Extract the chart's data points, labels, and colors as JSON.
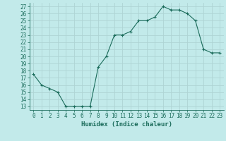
{
  "x": [
    0,
    1,
    2,
    3,
    4,
    5,
    6,
    7,
    8,
    9,
    10,
    11,
    12,
    13,
    14,
    15,
    16,
    17,
    18,
    19,
    20,
    21,
    22,
    23
  ],
  "y": [
    17.5,
    16,
    15.5,
    15,
    13,
    13,
    13,
    13,
    18.5,
    20,
    23,
    23,
    23.5,
    25,
    25,
    25.5,
    27,
    26.5,
    26.5,
    26,
    25,
    21,
    20.5,
    20.5
  ],
  "line_color": "#1a6b5a",
  "marker": "+",
  "bg_color": "#c2eaea",
  "grid_color": "#aed4d4",
  "xlabel": "Humidex (Indice chaleur)",
  "xlim": [
    -0.5,
    23.5
  ],
  "ylim": [
    12.5,
    27.5
  ],
  "yticks": [
    13,
    14,
    15,
    16,
    17,
    18,
    19,
    20,
    21,
    22,
    23,
    24,
    25,
    26,
    27
  ],
  "xticks": [
    0,
    1,
    2,
    3,
    4,
    5,
    6,
    7,
    8,
    9,
    10,
    11,
    12,
    13,
    14,
    15,
    16,
    17,
    18,
    19,
    20,
    21,
    22,
    23
  ],
  "tick_color": "#1a6b5a",
  "label_fontsize": 6.5,
  "tick_fontsize": 5.5
}
